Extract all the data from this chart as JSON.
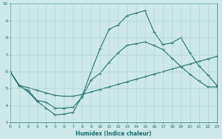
{
  "xlabel": "Humidex (Indice chaleur)",
  "xlim": [
    0,
    23
  ],
  "ylim": [
    3,
    10
  ],
  "xticks": [
    0,
    1,
    2,
    3,
    4,
    5,
    6,
    7,
    8,
    9,
    10,
    11,
    12,
    13,
    14,
    15,
    16,
    17,
    18,
    19,
    20,
    21,
    22,
    23
  ],
  "yticks": [
    3,
    4,
    5,
    6,
    7,
    8,
    9,
    10
  ],
  "bg_color": "#cce8e8",
  "line_color": "#1a6b6b",
  "grid_color": "#aad0d0",
  "line1_x": [
    0,
    1,
    2,
    3,
    4,
    5,
    6,
    7,
    8,
    9,
    10,
    11,
    12,
    13,
    14,
    15,
    16,
    17,
    18,
    19,
    20,
    21,
    22,
    23
  ],
  "line1_y": [
    6.0,
    5.2,
    4.8,
    4.25,
    3.85,
    3.45,
    3.5,
    3.6,
    4.55,
    6.0,
    7.35,
    8.5,
    8.75,
    9.3,
    9.45,
    9.6,
    8.35,
    7.6,
    7.7,
    8.0,
    7.1,
    6.35,
    5.8,
    5.2
  ],
  "line2_x": [
    0,
    1,
    2,
    3,
    4,
    5,
    6,
    7,
    8,
    9,
    10,
    11,
    12,
    13,
    14,
    15,
    16,
    17,
    18,
    19,
    20,
    21,
    22,
    23
  ],
  "line2_y": [
    6.0,
    5.2,
    5.05,
    4.9,
    4.75,
    4.6,
    4.55,
    4.55,
    4.65,
    4.8,
    4.95,
    5.1,
    5.25,
    5.4,
    5.55,
    5.7,
    5.85,
    6.0,
    6.15,
    6.3,
    6.45,
    6.6,
    6.75,
    6.9
  ],
  "line3_x": [
    0,
    1,
    2,
    3,
    4,
    5,
    6,
    7,
    8,
    9,
    10,
    11,
    12,
    13,
    14,
    15,
    16,
    17,
    18,
    19,
    20,
    21,
    22,
    23
  ],
  "line3_y": [
    6.0,
    5.15,
    4.9,
    4.3,
    4.2,
    3.85,
    3.85,
    3.9,
    4.5,
    5.5,
    5.9,
    6.55,
    7.1,
    7.55,
    7.65,
    7.75,
    7.55,
    7.3,
    6.8,
    6.3,
    5.85,
    5.45,
    5.1,
    5.1
  ]
}
